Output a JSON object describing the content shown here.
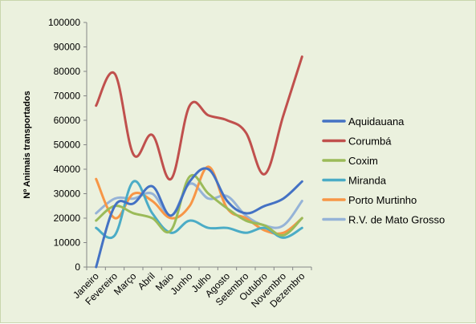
{
  "chart_data": {
    "type": "line",
    "title": "",
    "xlabel": "",
    "ylabel": "Nº Animais transportados",
    "ylim": [
      0,
      100000
    ],
    "y_ticks": [
      "0",
      "10000",
      "20000",
      "30000",
      "40000",
      "50000",
      "60000",
      "70000",
      "80000",
      "90000",
      "100000"
    ],
    "categories": [
      "Janeiro",
      "Fevereiro",
      "Março",
      "Abril",
      "Maio",
      "Junho",
      "Julho",
      "Agosto",
      "Setembro",
      "Outubro",
      "Novembro",
      "Dezembro"
    ],
    "grid": false,
    "legend_position": "right",
    "series": [
      {
        "name": "Aquidauana",
        "color": "#4472c4",
        "values": [
          0,
          25000,
          26000,
          33000,
          21000,
          35000,
          40000,
          27000,
          22000,
          25000,
          28000,
          35000
        ]
      },
      {
        "name": "Corumbá",
        "color": "#c0504d",
        "values": [
          66000,
          79000,
          46000,
          54000,
          36000,
          66000,
          62000,
          60000,
          55000,
          38000,
          62000,
          86000
        ]
      },
      {
        "name": "Coxim",
        "color": "#9bbb59",
        "values": [
          19000,
          25000,
          22000,
          20000,
          15000,
          37000,
          30000,
          24000,
          19000,
          17000,
          13000,
          20000
        ]
      },
      {
        "name": "Miranda",
        "color": "#4bacc6",
        "values": [
          16000,
          13000,
          35000,
          22000,
          14000,
          19000,
          16000,
          16000,
          14000,
          16000,
          12000,
          16000
        ]
      },
      {
        "name": "Porto Murtinho",
        "color": "#f79646",
        "values": [
          36000,
          20000,
          30000,
          27000,
          20000,
          25000,
          41000,
          24000,
          20000,
          15000,
          14000,
          20000
        ]
      },
      {
        "name": "R.V. de Mato Grosso",
        "color": "#95b3d7",
        "values": [
          22000,
          28000,
          28000,
          30000,
          21000,
          34000,
          28000,
          29000,
          21000,
          17000,
          17000,
          27000
        ]
      }
    ]
  }
}
